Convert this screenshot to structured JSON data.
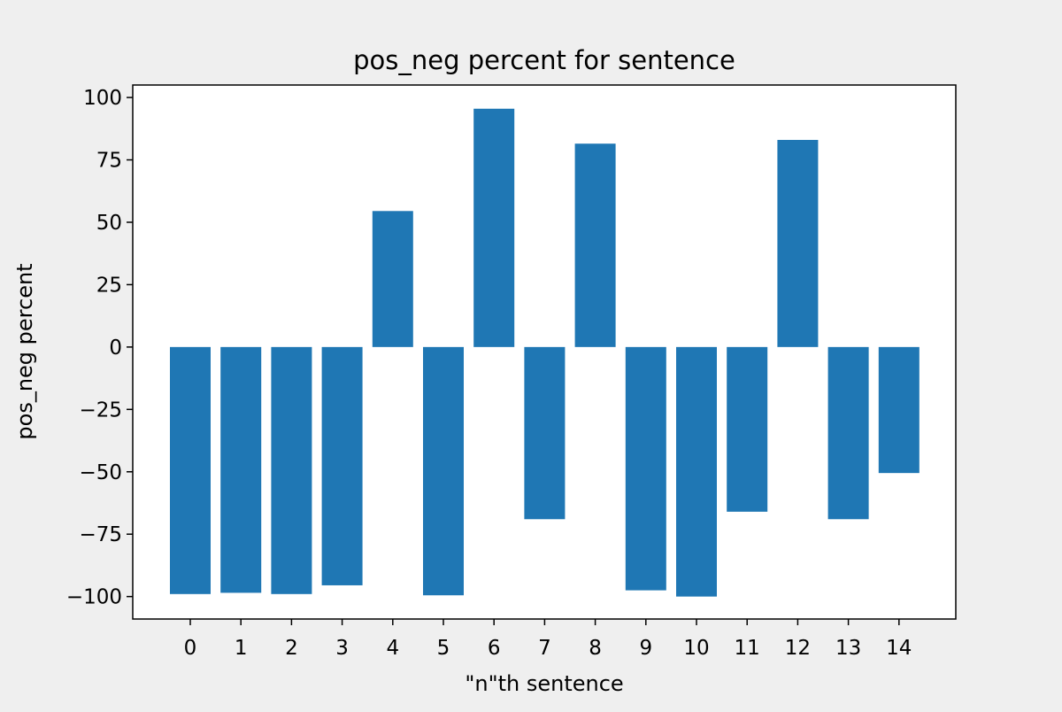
{
  "colors": {
    "figure_background": "#efefef",
    "plot_background": "#ffffff",
    "bar": "#1f77b4",
    "axis": "#000000"
  },
  "chart_data": {
    "type": "bar",
    "title": "pos_neg percent for sentence",
    "xlabel": "\"n\"th sentence",
    "ylabel": "pos_neg percent",
    "categories": [
      "0",
      "1",
      "2",
      "3",
      "4",
      "5",
      "6",
      "7",
      "8",
      "9",
      "10",
      "11",
      "12",
      "13",
      "14"
    ],
    "values": [
      -99,
      -98.5,
      -99,
      -95.5,
      54.5,
      -99.5,
      95.5,
      -69,
      81.5,
      -97.5,
      -100,
      -66,
      83,
      -69,
      -50.5
    ],
    "ylim": [
      -109,
      105
    ],
    "yticks": [
      100,
      75,
      50,
      25,
      0,
      -25,
      -50,
      -75,
      -100
    ],
    "ytick_labels": [
      "100",
      "75",
      "50",
      "25",
      "0",
      "−25",
      "−50",
      "−75",
      "−100"
    ],
    "grid": false,
    "legend": false
  }
}
